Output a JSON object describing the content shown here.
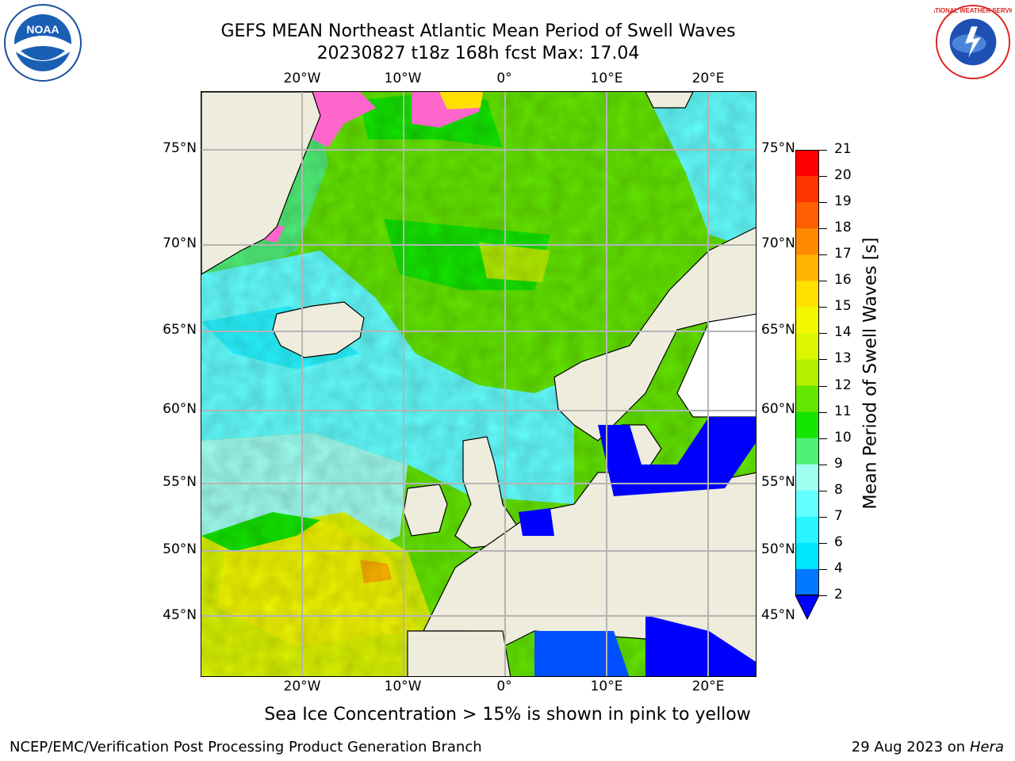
{
  "title": {
    "line1": "GEFS MEAN Northeast Atlantic Mean Period of Swell Waves",
    "line2": "20230827 t18z 168h fcst   Max: 17.04"
  },
  "logos": {
    "left": {
      "icon": "noaa-logo",
      "text": "NOAA"
    },
    "right": {
      "icon": "nws-logo",
      "text": "NATIONAL WEATHER SERVICE"
    }
  },
  "map": {
    "projection": "plate-carree",
    "lon_range": [
      -30,
      25
    ],
    "lat_range": [
      41,
      78
    ],
    "lon_labels": [
      "20°W",
      "10°W",
      "0°",
      "10°E",
      "20°E"
    ],
    "lat_labels": [
      "75°N",
      "70°N",
      "65°N",
      "60°N",
      "55°N",
      "50°N",
      "45°N"
    ],
    "ocean_dominant_periods": {
      "arctic_north": "10-13",
      "norwegian_sea": "9-12",
      "iceland_area": "6-9",
      "bay_of_biscay_southwest": "13-16",
      "baltic_mediterranean": "2-4"
    },
    "colors": {
      "land": "#eeecdc",
      "grid": "#b4b4b4",
      "coast": "#000000"
    }
  },
  "colorbar": {
    "title": "Mean Period of Swell Waves [s]",
    "ticks": [
      "21",
      "20",
      "19",
      "18",
      "17",
      "16",
      "15",
      "14",
      "13",
      "12",
      "11",
      "10",
      "9",
      "8",
      "7",
      "6",
      "4",
      "2"
    ],
    "bins": [
      {
        "from": 20,
        "to": 21,
        "color": "#ff0000"
      },
      {
        "from": 19,
        "to": 20,
        "color": "#ff3500"
      },
      {
        "from": 18,
        "to": 19,
        "color": "#ff5f00"
      },
      {
        "from": 17,
        "to": 18,
        "color": "#ff8a00"
      },
      {
        "from": 16,
        "to": 17,
        "color": "#ffb400"
      },
      {
        "from": 15,
        "to": 16,
        "color": "#ffe000"
      },
      {
        "from": 14,
        "to": 15,
        "color": "#f2f700"
      },
      {
        "from": 13,
        "to": 14,
        "color": "#dcf500"
      },
      {
        "from": 12,
        "to": 13,
        "color": "#b4ef00"
      },
      {
        "from": 11,
        "to": 12,
        "color": "#64e600"
      },
      {
        "from": 10,
        "to": 11,
        "color": "#14e600"
      },
      {
        "from": 9,
        "to": 10,
        "color": "#50f078"
      },
      {
        "from": 8,
        "to": 9,
        "color": "#a0fff0"
      },
      {
        "from": 7,
        "to": 8,
        "color": "#64ffff"
      },
      {
        "from": 6,
        "to": 7,
        "color": "#28f5ff"
      },
      {
        "from": 4,
        "to": 6,
        "color": "#00e6ff"
      },
      {
        "from": 2,
        "to": 4,
        "color": "#0078ff"
      },
      {
        "from": 0,
        "to": 2,
        "color": "#0000ff"
      }
    ]
  },
  "footnote": "Sea Ice Concentration > 15% is shown in pink to yellow",
  "credit": "NCEP/EMC/Verification Post Processing Product Generation Branch",
  "date_text": "29 Aug 2023 on",
  "date_host": "Hera"
}
